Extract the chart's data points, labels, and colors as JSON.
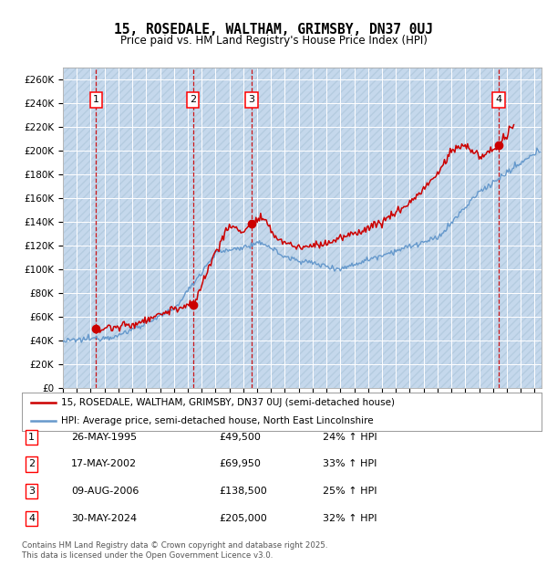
{
  "title": "15, ROSEDALE, WALTHAM, GRIMSBY, DN37 0UJ",
  "subtitle": "Price paid vs. HM Land Registry's House Price Index (HPI)",
  "ylabel_ticks": [
    "£0",
    "£20K",
    "£40K",
    "£60K",
    "£80K",
    "£100K",
    "£120K",
    "£140K",
    "£160K",
    "£180K",
    "£200K",
    "£220K",
    "£240K",
    "£260K"
  ],
  "ytick_values": [
    0,
    20000,
    40000,
    60000,
    80000,
    100000,
    120000,
    140000,
    160000,
    180000,
    200000,
    220000,
    240000,
    260000
  ],
  "ylim": [
    0,
    270000
  ],
  "xlim_start": 1993.0,
  "xlim_end": 2027.5,
  "sale_dates": [
    1995.38,
    2002.38,
    2006.6,
    2024.41
  ],
  "sale_prices": [
    49500,
    69950,
    138500,
    205000
  ],
  "sale_labels": [
    "1",
    "2",
    "3",
    "4"
  ],
  "legend_line1": "15, ROSEDALE, WALTHAM, GRIMSBY, DN37 0UJ (semi-detached house)",
  "legend_line2": "HPI: Average price, semi-detached house, North East Lincolnshire",
  "table_rows": [
    [
      "1",
      "26-MAY-1995",
      "£49,500",
      "24% ↑ HPI"
    ],
    [
      "2",
      "17-MAY-2002",
      "£69,950",
      "33% ↑ HPI"
    ],
    [
      "3",
      "09-AUG-2006",
      "£138,500",
      "25% ↑ HPI"
    ],
    [
      "4",
      "30-MAY-2024",
      "£205,000",
      "32% ↑ HPI"
    ]
  ],
  "footer": "Contains HM Land Registry data © Crown copyright and database right 2025.\nThis data is licensed under the Open Government Licence v3.0.",
  "red_line_color": "#cc0000",
  "blue_line_color": "#6699cc",
  "dashed_line_color": "#cc0000",
  "plot_bg": "#dce9f5",
  "hatch_color": "#c5d8ec"
}
